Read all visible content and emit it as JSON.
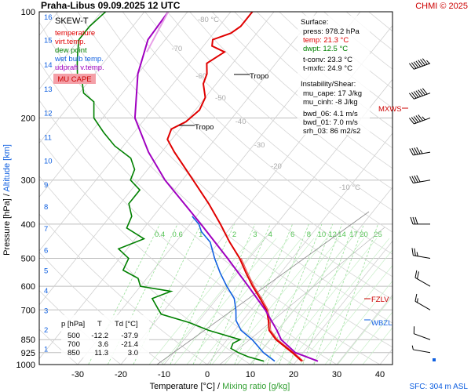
{
  "header": {
    "title": "Praha-Libus   09.09.2025 12 UTC",
    "credit": "CHMI © 2025",
    "sfc": "SFC: 304 m ASL"
  },
  "chart_data": {
    "type": "line",
    "diagram": "skew-T log-p",
    "xlabel": "Temperature [°C]",
    "xlabel_sep": " / ",
    "xlabel2": "Mixing ratio [g/kg]",
    "ylabel": "Pressure [hPa]",
    "ylabel_sep": " / ",
    "ylabel2": "Altitude [km]",
    "x_ticks": [
      -30,
      -20,
      -10,
      0,
      10,
      20,
      30,
      40
    ],
    "p_ticks": [
      100,
      200,
      300,
      400,
      500,
      600,
      700,
      850,
      925,
      1000
    ],
    "alt_ticks": [
      1,
      2,
      3,
      4,
      5,
      6,
      7,
      8,
      9,
      10,
      11,
      12,
      13,
      14,
      15,
      16
    ],
    "isotherm_labels": [
      "-80 °C",
      "-70",
      "-60",
      "-50",
      "-40",
      "-30",
      "-20",
      "-10 °C"
    ],
    "mixing_ratio_labels": [
      "0.4",
      "0.6",
      "1",
      "2",
      "3",
      "4",
      "6",
      "8",
      "10",
      "12",
      "14",
      "17",
      "20",
      "25"
    ],
    "legend": {
      "title": "SKEW-T",
      "items": [
        {
          "label": "temperature",
          "color": "#e00000"
        },
        {
          "label": "virt.temp.",
          "color": "#e00000"
        },
        {
          "label": "dew point",
          "color": "#008000"
        },
        {
          "label": "wet bulb temp.",
          "color": "#1060e0"
        },
        {
          "label": "udpraft v.temp.",
          "color": "#a000c0"
        }
      ],
      "badge": "MU CAPE"
    },
    "info": {
      "surface_title": "Surface:",
      "press": "press: 978.2 hPa",
      "temp": "temp: 21.3 °C",
      "dwpt": "dwpt: 12.5 °C",
      "tconv": "t-conv: 23.3 °C",
      "tmxfc": "t-mxfc: 24.9 °C",
      "instab_title": "Instability/Shear:",
      "mu_cape": "mu_cape: 17 J/kg",
      "mu_cinh": "mu_cinh: -8 J/kg",
      "bwd_06": "bwd_06: 4.1 m/s",
      "bwd_01": "bwd_01: 7.0 m/s",
      "srh_03": "srh_03: 86 m2/s2"
    },
    "table": {
      "headers": [
        "p [hPa]",
        "T",
        "Td [°C]"
      ],
      "rows": [
        [
          "500",
          "-12.2",
          "-37.9"
        ],
        [
          "700",
          "3.6",
          "-21.4"
        ],
        [
          "850",
          "11.3",
          "3.0"
        ]
      ]
    },
    "markers": {
      "tropo": "Tropo",
      "mxws": "MXWS",
      "fzlv": "FZLV",
      "wbzl": "WBZL"
    },
    "series": [
      {
        "name": "temperature",
        "color": "#e00000",
        "points": [
          [
            978,
            21.3
          ],
          [
            925,
            17.5
          ],
          [
            850,
            11.3
          ],
          [
            800,
            8.0
          ],
          [
            750,
            6.0
          ],
          [
            700,
            3.6
          ],
          [
            650,
            0.0
          ],
          [
            600,
            -4.0
          ],
          [
            550,
            -8.0
          ],
          [
            500,
            -12.2
          ],
          [
            450,
            -17.5
          ],
          [
            400,
            -23.0
          ],
          [
            350,
            -29.5
          ],
          [
            300,
            -37.5
          ],
          [
            250,
            -47.0
          ],
          [
            230,
            -51.0
          ],
          [
            215,
            -52.0
          ],
          [
            205,
            -50.0
          ],
          [
            190,
            -49.0
          ],
          [
            175,
            -50.0
          ],
          [
            160,
            -53.0
          ],
          [
            150,
            -54.0
          ],
          [
            140,
            -56.0
          ],
          [
            130,
            -54.0
          ],
          [
            125,
            -58.0
          ],
          [
            120,
            -59.0
          ],
          [
            115,
            -56.0
          ],
          [
            110,
            -55.0
          ],
          [
            100,
            -55.0
          ]
        ]
      },
      {
        "name": "dew point",
        "color": "#008000",
        "points": [
          [
            978,
            12.5
          ],
          [
            950,
            8.0
          ],
          [
            925,
            5.0
          ],
          [
            900,
            2.5
          ],
          [
            870,
            2.0
          ],
          [
            850,
            3.0
          ],
          [
            800,
            -6.0
          ],
          [
            760,
            -12.0
          ],
          [
            720,
            -20.0
          ],
          [
            700,
            -21.4
          ],
          [
            650,
            -25.0
          ],
          [
            620,
            -22.0
          ],
          [
            600,
            -30.0
          ],
          [
            570,
            -32.0
          ],
          [
            540,
            -37.0
          ],
          [
            500,
            -37.9
          ],
          [
            470,
            -42.0
          ],
          [
            440,
            -38.0
          ],
          [
            410,
            -44.0
          ],
          [
            380,
            -45.0
          ],
          [
            350,
            -48.0
          ],
          [
            320,
            -48.0
          ],
          [
            300,
            -52.0
          ],
          [
            280,
            -53.0
          ],
          [
            260,
            -56.0
          ],
          [
            240,
            -62.0
          ],
          [
            220,
            -67.0
          ],
          [
            200,
            -72.0
          ],
          [
            180,
            -75.0
          ],
          [
            170,
            -79.0
          ],
          [
            160,
            -81.0
          ],
          [
            150,
            -84.0
          ],
          [
            140,
            -86.0
          ],
          [
            130,
            -88.0
          ],
          [
            120,
            -90.0
          ],
          [
            110,
            -90.0
          ],
          [
            100,
            -89.0
          ]
        ]
      },
      {
        "name": "wet bulb temp.",
        "color": "#1060e0",
        "points": [
          [
            978,
            15.0
          ],
          [
            925,
            10.8
          ],
          [
            850,
            5.8
          ],
          [
            800,
            1.5
          ],
          [
            750,
            -1.5
          ],
          [
            700,
            -3.5
          ],
          [
            650,
            -6.0
          ],
          [
            600,
            -10.0
          ],
          [
            550,
            -14.0
          ],
          [
            500,
            -18.0
          ],
          [
            450,
            -22.0
          ],
          [
            420,
            -26.0
          ],
          [
            400,
            -28.0
          ],
          [
            380,
            -31.0
          ]
        ]
      },
      {
        "name": "udpraft v.temp.",
        "color": "#a000c0",
        "points": [
          [
            978,
            25.0
          ],
          [
            925,
            18.2
          ],
          [
            850,
            12.5
          ],
          [
            800,
            9.8
          ],
          [
            700,
            3.3
          ],
          [
            600,
            -5.0
          ],
          [
            500,
            -15.0
          ],
          [
            400,
            -27.5
          ],
          [
            300,
            -44.0
          ],
          [
            250,
            -53.0
          ],
          [
            200,
            -62.5
          ],
          [
            150,
            -70.0
          ],
          [
            120,
            -74.0
          ],
          [
            100,
            -74.5
          ]
        ]
      }
    ],
    "wind_profile_kt": [
      {
        "p": 140,
        "dir": 250,
        "spd": 75
      },
      {
        "p": 170,
        "dir": 250,
        "spd": 70
      },
      {
        "p": 200,
        "dir": 250,
        "spd": 55
      },
      {
        "p": 250,
        "dir": 260,
        "spd": 45
      },
      {
        "p": 300,
        "dir": 260,
        "spd": 40
      },
      {
        "p": 400,
        "dir": 270,
        "spd": 30
      },
      {
        "p": 500,
        "dir": 280,
        "spd": 25
      },
      {
        "p": 600,
        "dir": 300,
        "spd": 20
      },
      {
        "p": 700,
        "dir": 300,
        "spd": 15
      },
      {
        "p": 850,
        "dir": 290,
        "spd": 10
      },
      {
        "p": 925,
        "dir": 280,
        "spd": 5
      }
    ]
  }
}
